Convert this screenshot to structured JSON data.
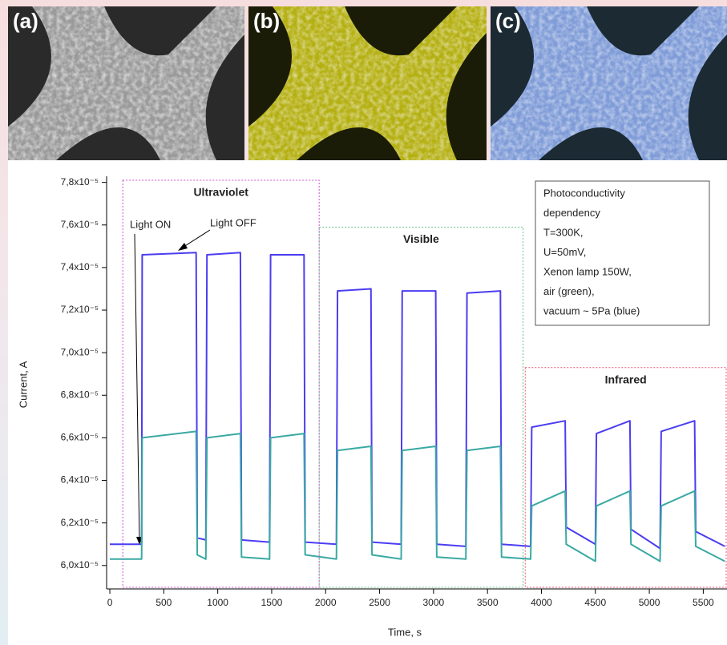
{
  "chart_data": {
    "type": "line",
    "panels": [
      "(a)",
      "(b)",
      "(c)"
    ],
    "xlabel": "Time, s",
    "ylabel": "Current, A",
    "xlim": [
      -30,
      5720
    ],
    "ylim": [
      5.89e-05,
      7.81e-05
    ],
    "xticks": [
      0,
      500,
      1000,
      1500,
      2000,
      2500,
      3000,
      3500,
      4000,
      4500,
      5000,
      5500
    ],
    "yticks": [
      {
        "value": 6e-05,
        "label": "6,0x10⁻⁵"
      },
      {
        "value": 6.2e-05,
        "label": "6,2x10⁻⁵"
      },
      {
        "value": 6.4e-05,
        "label": "6,4x10⁻⁵"
      },
      {
        "value": 6.6e-05,
        "label": "6,6x10⁻⁵"
      },
      {
        "value": 6.8e-05,
        "label": "6,8x10⁻⁵"
      },
      {
        "value": 7e-05,
        "label": "7,0x10⁻⁵"
      },
      {
        "value": 7.2e-05,
        "label": "7,2x10⁻⁵"
      },
      {
        "value": 7.4e-05,
        "label": "7,4x10⁻⁵"
      },
      {
        "value": 7.6e-05,
        "label": "7,6x10⁻⁵"
      },
      {
        "value": 7.8e-05,
        "label": "7,8x10⁻⁵"
      }
    ],
    "x": [
      0,
      295,
      300,
      800,
      810,
      890,
      900,
      1210,
      1220,
      1480,
      1490,
      1800,
      1810,
      2100,
      2110,
      2420,
      2430,
      2700,
      2710,
      3020,
      3030,
      3300,
      3310,
      3620,
      3630,
      3900,
      3910,
      4220,
      4230,
      4500,
      4510,
      4820,
      4830,
      5100,
      5110,
      5420,
      5430,
      5700
    ],
    "series": [
      {
        "name": "vacuum",
        "color": "#4b3df2",
        "values": [
          6.1e-05,
          6.1e-05,
          7.46e-05,
          7.47e-05,
          6.13e-05,
          6.12e-05,
          7.46e-05,
          7.47e-05,
          6.12e-05,
          6.11e-05,
          7.46e-05,
          7.46e-05,
          6.11e-05,
          6.1e-05,
          7.29e-05,
          7.3e-05,
          6.11e-05,
          6.1e-05,
          7.29e-05,
          7.29e-05,
          6.1e-05,
          6.09e-05,
          7.28e-05,
          7.29e-05,
          6.1e-05,
          6.09e-05,
          6.65e-05,
          6.68e-05,
          6.18e-05,
          6.1e-05,
          6.62e-05,
          6.68e-05,
          6.17e-05,
          6.08e-05,
          6.63e-05,
          6.68e-05,
          6.16e-05,
          6.09e-05
        ]
      },
      {
        "name": "air",
        "color": "#3aa9a3",
        "values": [
          6.03e-05,
          6.03e-05,
          6.6e-05,
          6.63e-05,
          6.05e-05,
          6.03e-05,
          6.6e-05,
          6.62e-05,
          6.04e-05,
          6.03e-05,
          6.6e-05,
          6.62e-05,
          6.05e-05,
          6.03e-05,
          6.54e-05,
          6.56e-05,
          6.05e-05,
          6.03e-05,
          6.54e-05,
          6.56e-05,
          6.04e-05,
          6.03e-05,
          6.54e-05,
          6.56e-05,
          6.04e-05,
          6.03e-05,
          6.28e-05,
          6.35e-05,
          6.1e-05,
          6.02e-05,
          6.28e-05,
          6.35e-05,
          6.1e-05,
          6.02e-05,
          6.28e-05,
          6.35e-05,
          6.09e-05,
          6.02e-05
        ]
      }
    ],
    "regions": [
      {
        "label": "Ultraviolet",
        "x": [
          120,
          1940
        ],
        "top": 7.81e-05,
        "color": "#d050d0",
        "text_color": "#9b1fa8"
      },
      {
        "label": "Visible",
        "x": [
          1940,
          3830
        ],
        "top": 7.59e-05,
        "color": "#6cc08a",
        "text_color": "#2e9c3c"
      },
      {
        "label": "Infrared",
        "x": [
          3850,
          5720
        ],
        "top": 6.93e-05,
        "color": "#ee5577",
        "text_color": "#e8202a"
      }
    ],
    "annotations": [
      "Light ON",
      "Light OFF"
    ],
    "info_box": [
      "Photoconductivity",
      "dependency",
      "T=300K,",
      "U=50mV,",
      "Xenon lamp 150W,",
      "air (green),",
      "vacuum ~ 5Pa (blue)"
    ]
  }
}
